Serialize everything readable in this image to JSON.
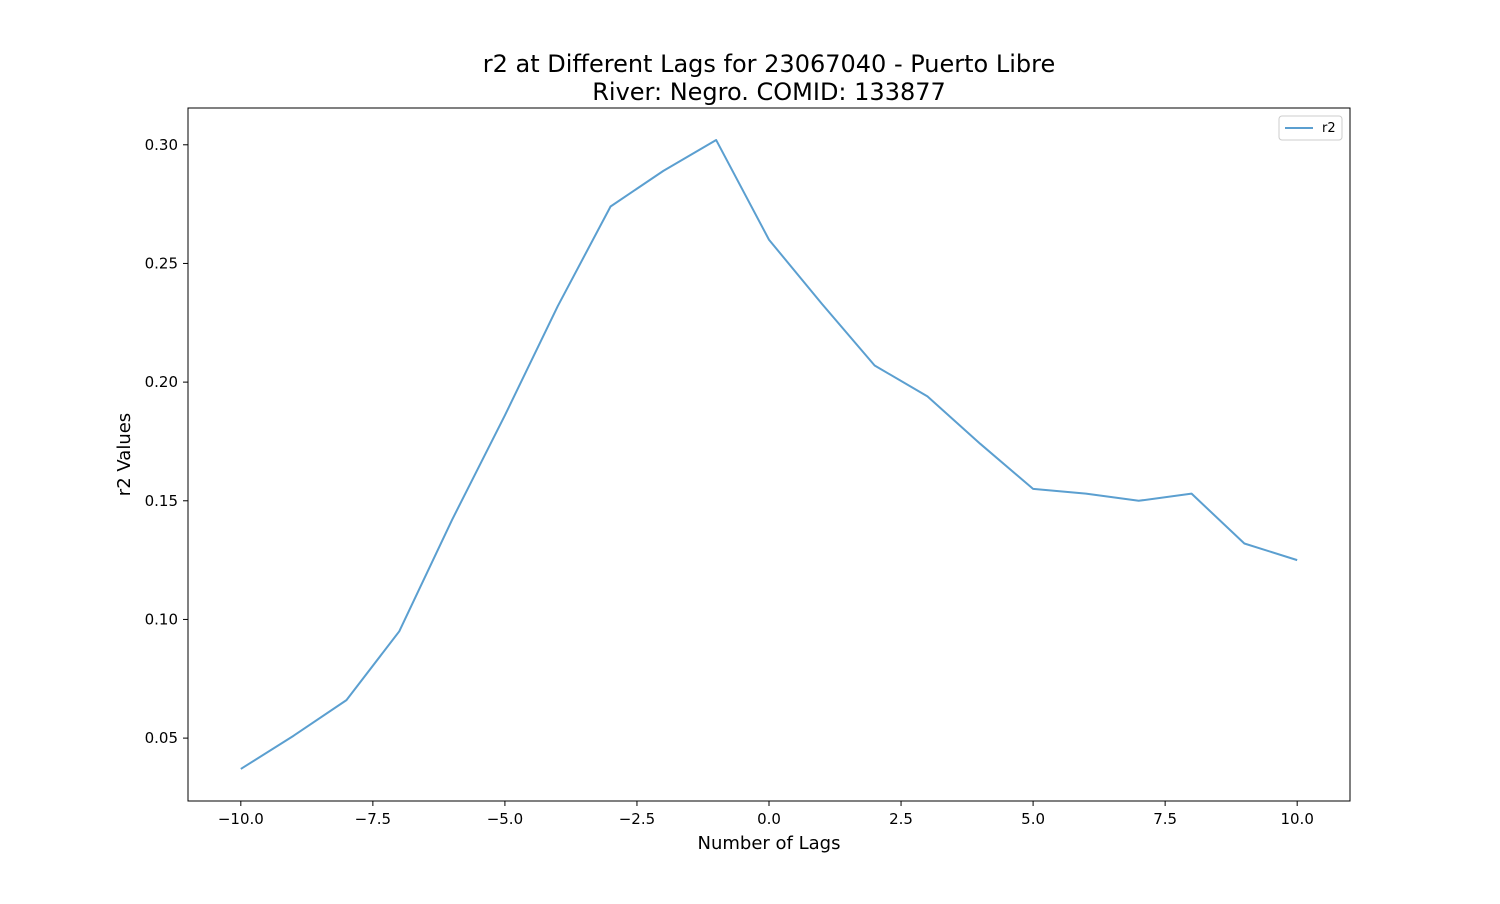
{
  "chart_data": {
    "type": "line",
    "title": [
      "r2 at Different Lags for 23067040 - Puerto Libre",
      "River: Negro. COMID: 133877"
    ],
    "xlabel": "Number of Lags",
    "ylabel": "r2 Values",
    "xlim": [
      -11,
      11
    ],
    "ylim": [
      0.0235,
      0.3155
    ],
    "x_ticks": [
      -10.0,
      -7.5,
      -5.0,
      -2.5,
      0.0,
      2.5,
      5.0,
      7.5,
      10.0
    ],
    "x_tick_labels": [
      "−10.0",
      "−7.5",
      "−5.0",
      "−2.5",
      "0.0",
      "2.5",
      "5.0",
      "7.5",
      "10.0"
    ],
    "y_ticks": [
      0.05,
      0.1,
      0.15,
      0.2,
      0.25,
      0.3
    ],
    "y_tick_labels": [
      "0.05",
      "0.10",
      "0.15",
      "0.20",
      "0.25",
      "0.30"
    ],
    "grid": false,
    "legend_position": "top-right",
    "series": [
      {
        "name": "r2",
        "color": "#5b9fd0",
        "x": [
          -10,
          -9,
          -8,
          -7,
          -6,
          -5,
          -4,
          -3,
          -2,
          -1,
          0,
          1,
          2,
          3,
          4,
          5,
          6,
          7,
          8,
          9,
          10
        ],
        "y": [
          0.037,
          0.051,
          0.066,
          0.095,
          0.142,
          0.186,
          0.232,
          0.274,
          0.289,
          0.302,
          0.26,
          0.233,
          0.207,
          0.194,
          0.174,
          0.155,
          0.153,
          0.15,
          0.153,
          0.132,
          0.125
        ]
      }
    ]
  }
}
